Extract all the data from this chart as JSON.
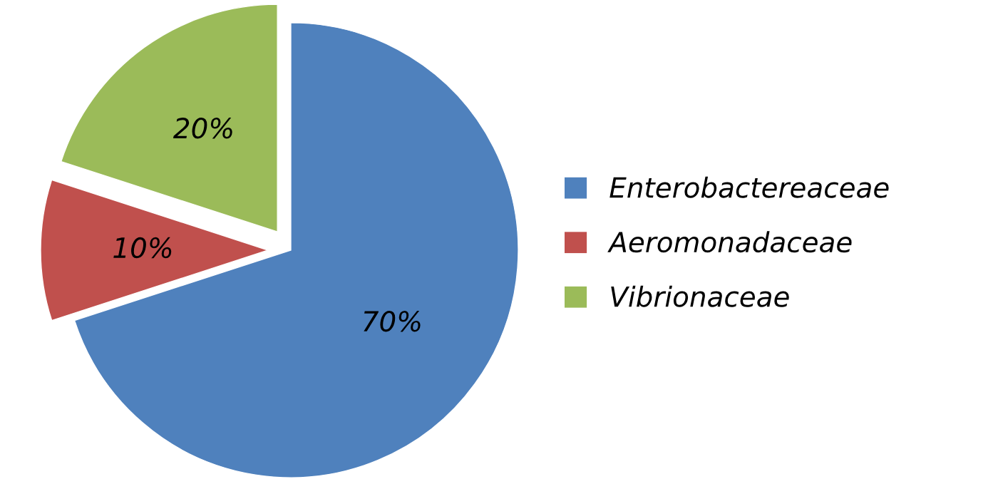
{
  "chart_data": {
    "type": "pie",
    "categories": [
      "Enterobactereaceae",
      "Aeromonadaceae",
      "Vibrionaceae"
    ],
    "values": [
      70,
      10,
      20
    ],
    "value_labels": [
      "70%",
      "10%",
      "20%"
    ],
    "colors": [
      "#4f81bd",
      "#c0504d",
      "#9bbb59"
    ],
    "legend": "right"
  }
}
